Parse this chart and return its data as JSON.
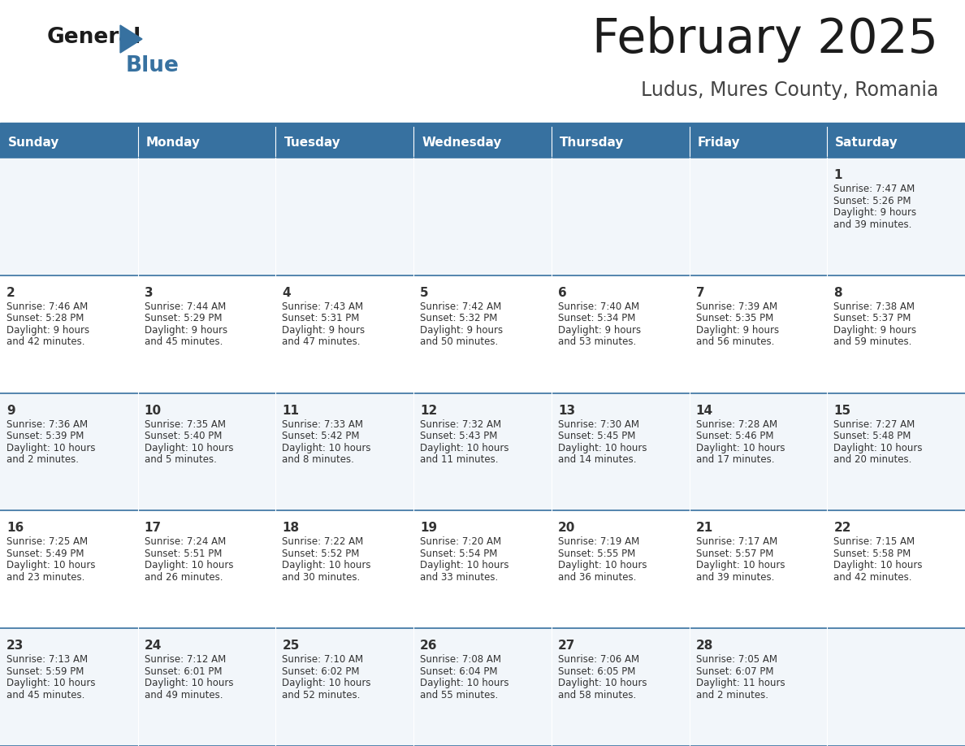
{
  "title": "February 2025",
  "subtitle": "Ludus, Mures County, Romania",
  "header_color": "#3771a0",
  "header_text_color": "#ffffff",
  "cell_bg_even": "#f2f6fa",
  "cell_bg_odd": "#ffffff",
  "text_color": "#333333",
  "line_color": "#3771a0",
  "days_of_week": [
    "Sunday",
    "Monday",
    "Tuesday",
    "Wednesday",
    "Thursday",
    "Friday",
    "Saturday"
  ],
  "calendar_data": [
    [
      null,
      null,
      null,
      null,
      null,
      null,
      {
        "day": "1",
        "sunrise": "7:47 AM",
        "sunset": "5:26 PM",
        "daylight1": "9 hours",
        "daylight2": "and 39 minutes."
      }
    ],
    [
      {
        "day": "2",
        "sunrise": "7:46 AM",
        "sunset": "5:28 PM",
        "daylight1": "9 hours",
        "daylight2": "and 42 minutes."
      },
      {
        "day": "3",
        "sunrise": "7:44 AM",
        "sunset": "5:29 PM",
        "daylight1": "9 hours",
        "daylight2": "and 45 minutes."
      },
      {
        "day": "4",
        "sunrise": "7:43 AM",
        "sunset": "5:31 PM",
        "daylight1": "9 hours",
        "daylight2": "and 47 minutes."
      },
      {
        "day": "5",
        "sunrise": "7:42 AM",
        "sunset": "5:32 PM",
        "daylight1": "9 hours",
        "daylight2": "and 50 minutes."
      },
      {
        "day": "6",
        "sunrise": "7:40 AM",
        "sunset": "5:34 PM",
        "daylight1": "9 hours",
        "daylight2": "and 53 minutes."
      },
      {
        "day": "7",
        "sunrise": "7:39 AM",
        "sunset": "5:35 PM",
        "daylight1": "9 hours",
        "daylight2": "and 56 minutes."
      },
      {
        "day": "8",
        "sunrise": "7:38 AM",
        "sunset": "5:37 PM",
        "daylight1": "9 hours",
        "daylight2": "and 59 minutes."
      }
    ],
    [
      {
        "day": "9",
        "sunrise": "7:36 AM",
        "sunset": "5:39 PM",
        "daylight1": "10 hours",
        "daylight2": "and 2 minutes."
      },
      {
        "day": "10",
        "sunrise": "7:35 AM",
        "sunset": "5:40 PM",
        "daylight1": "10 hours",
        "daylight2": "and 5 minutes."
      },
      {
        "day": "11",
        "sunrise": "7:33 AM",
        "sunset": "5:42 PM",
        "daylight1": "10 hours",
        "daylight2": "and 8 minutes."
      },
      {
        "day": "12",
        "sunrise": "7:32 AM",
        "sunset": "5:43 PM",
        "daylight1": "10 hours",
        "daylight2": "and 11 minutes."
      },
      {
        "day": "13",
        "sunrise": "7:30 AM",
        "sunset": "5:45 PM",
        "daylight1": "10 hours",
        "daylight2": "and 14 minutes."
      },
      {
        "day": "14",
        "sunrise": "7:28 AM",
        "sunset": "5:46 PM",
        "daylight1": "10 hours",
        "daylight2": "and 17 minutes."
      },
      {
        "day": "15",
        "sunrise": "7:27 AM",
        "sunset": "5:48 PM",
        "daylight1": "10 hours",
        "daylight2": "and 20 minutes."
      }
    ],
    [
      {
        "day": "16",
        "sunrise": "7:25 AM",
        "sunset": "5:49 PM",
        "daylight1": "10 hours",
        "daylight2": "and 23 minutes."
      },
      {
        "day": "17",
        "sunrise": "7:24 AM",
        "sunset": "5:51 PM",
        "daylight1": "10 hours",
        "daylight2": "and 26 minutes."
      },
      {
        "day": "18",
        "sunrise": "7:22 AM",
        "sunset": "5:52 PM",
        "daylight1": "10 hours",
        "daylight2": "and 30 minutes."
      },
      {
        "day": "19",
        "sunrise": "7:20 AM",
        "sunset": "5:54 PM",
        "daylight1": "10 hours",
        "daylight2": "and 33 minutes."
      },
      {
        "day": "20",
        "sunrise": "7:19 AM",
        "sunset": "5:55 PM",
        "daylight1": "10 hours",
        "daylight2": "and 36 minutes."
      },
      {
        "day": "21",
        "sunrise": "7:17 AM",
        "sunset": "5:57 PM",
        "daylight1": "10 hours",
        "daylight2": "and 39 minutes."
      },
      {
        "day": "22",
        "sunrise": "7:15 AM",
        "sunset": "5:58 PM",
        "daylight1": "10 hours",
        "daylight2": "and 42 minutes."
      }
    ],
    [
      {
        "day": "23",
        "sunrise": "7:13 AM",
        "sunset": "5:59 PM",
        "daylight1": "10 hours",
        "daylight2": "and 45 minutes."
      },
      {
        "day": "24",
        "sunrise": "7:12 AM",
        "sunset": "6:01 PM",
        "daylight1": "10 hours",
        "daylight2": "and 49 minutes."
      },
      {
        "day": "25",
        "sunrise": "7:10 AM",
        "sunset": "6:02 PM",
        "daylight1": "10 hours",
        "daylight2": "and 52 minutes."
      },
      {
        "day": "26",
        "sunrise": "7:08 AM",
        "sunset": "6:04 PM",
        "daylight1": "10 hours",
        "daylight2": "and 55 minutes."
      },
      {
        "day": "27",
        "sunrise": "7:06 AM",
        "sunset": "6:05 PM",
        "daylight1": "10 hours",
        "daylight2": "and 58 minutes."
      },
      {
        "day": "28",
        "sunrise": "7:05 AM",
        "sunset": "6:07 PM",
        "daylight1": "11 hours",
        "daylight2": "and 2 minutes."
      },
      null
    ]
  ]
}
